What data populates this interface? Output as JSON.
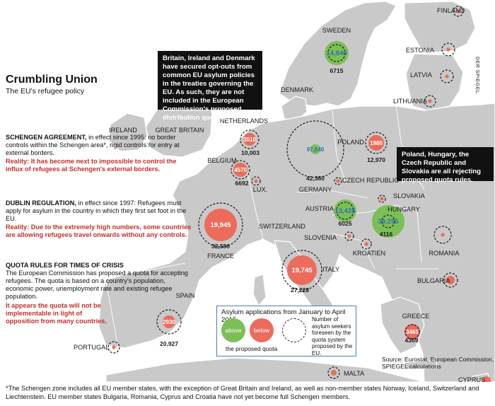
{
  "title": "Crumbling Union",
  "subtitle": "The EU's refugee policy",
  "schengen": {
    "heading": "SCHENGEN AGREEMENT,",
    "body": " in effect since 1995: no border controls within the Schengen area*, rigid controls for entry at external borders.",
    "reality": "Reality: It has become next to impossible to control the influx of refugees at Schengen's external borders."
  },
  "dublin": {
    "heading": "DUBLIN REGULATION,",
    "body": " in effect since 1997: Refugees must apply for asylum in the country in which they first set foot in the EU.",
    "reality": "Reality: Due to the extremely high numbers, some countries are allowing refugees travel onwards without any controls."
  },
  "quota": {
    "heading": "QUOTA RULES FOR TIMES OF CRISIS",
    "body": "The European Commission has proposed a quota for accepting refugees. The quota is based on a country's population, economic power, unemployment rate and existing refugee population.",
    "reality": "It appears the quota will not be implementable in light of opposition from many countries."
  },
  "optout_box": "Britain, Ireland and Denmark have secured opt-outs from common EU asylum policies in the treaties governing the EU. As such, they are not included in the European Commission's proposed distribution quotas.",
  "reject_box": "Poland, Hungary, the Czech Republic and Slovakia are all rejecting proposed quota rules.",
  "legend": {
    "title": "Asylum applications from January to April 2015",
    "above": "above",
    "below": "below",
    "caption": "the proposed quota",
    "note": "Number of asylum seekers foreseen by the quota system proposed by the EU."
  },
  "source": "Source: Eurostat, European Commission, SPIEGEL calculations",
  "credit": "DER SPIEGEL",
  "footnote": "*The Schengen zone includes all EU member states, with the exception of Great Britain and Ireland, as well as non-member states Norway, Iceland, Switzerland and Liechtenstein. EU member states Bulgaria, Romania, Cyprus and Croatia have not yet become full Schengen members.",
  "colors": {
    "above": "#7cbf56",
    "below": "#ec6b5c",
    "land": "#c9c9c9",
    "sea": "#ffffff",
    "highlight": "#c0302b",
    "legend_border": "#4d7fae"
  },
  "countries": [
    {
      "name": "FINLAND",
      "applications": "",
      "quota": ""
    },
    {
      "name": "SWEDEN",
      "applications": "14,840",
      "quota": "6715",
      "status": "above"
    },
    {
      "name": "ESTONIA",
      "applications": "",
      "quota": ""
    },
    {
      "name": "LATVIA",
      "applications": "",
      "quota": ""
    },
    {
      "name": "LITHUANIA",
      "applications": "",
      "quota": ""
    },
    {
      "name": "DENMARK",
      "applications": "",
      "quota": ""
    },
    {
      "name": "IRELAND",
      "applications": "",
      "quota": ""
    },
    {
      "name": "GREAT BRITAIN",
      "applications": "",
      "quota": ""
    },
    {
      "name": "NETHERLANDS",
      "applications": "3510",
      "quota": "10,003",
      "status": "below"
    },
    {
      "name": "BELGIUM",
      "applications": "4570",
      "quota": "6692",
      "status": "below"
    },
    {
      "name": "LUX.",
      "applications": "",
      "quota": ""
    },
    {
      "name": "GERMANY",
      "applications": "97,640",
      "quota": "42,360",
      "status": "above"
    },
    {
      "name": "POLAND",
      "applications": "1980",
      "quota": "12,970",
      "status": "below"
    },
    {
      "name": "CZECH REPUBLIC",
      "applications": "",
      "quota": ""
    },
    {
      "name": "SLOVAKIA",
      "applications": "",
      "quota": ""
    },
    {
      "name": "AUSTRIA",
      "applications": "13,425",
      "quota": "6025",
      "status": "above"
    },
    {
      "name": "HUNGARY",
      "applications": "39,295",
      "quota": "4116",
      "status": "above"
    },
    {
      "name": "SWITZERLAND",
      "applications": "",
      "quota": ""
    },
    {
      "name": "SLOVENIA",
      "applications": "",
      "quota": ""
    },
    {
      "name": "KROATIEN",
      "applications": "",
      "quota": ""
    },
    {
      "name": "ROMANIA",
      "applications": "",
      "quota": ""
    },
    {
      "name": "FRANCE",
      "applications": "19,945",
      "quota": "32,586",
      "status": "below"
    },
    {
      "name": "ITALY",
      "applications": "19,745",
      "quota": "27,228",
      "status": "below"
    },
    {
      "name": "BULGARIA",
      "applications": "",
      "quota": ""
    },
    {
      "name": "SPAIN",
      "applications": "2930",
      "quota": "20,927",
      "status": "below"
    },
    {
      "name": "PORTUGAL",
      "applications": "",
      "quota": ""
    },
    {
      "name": "GREECE",
      "applications": "3465",
      "quota": "4369",
      "status": "below"
    },
    {
      "name": "MALTA",
      "applications": "",
      "quota": ""
    },
    {
      "name": "CYPRUS",
      "applications": "",
      "quota": ""
    }
  ]
}
